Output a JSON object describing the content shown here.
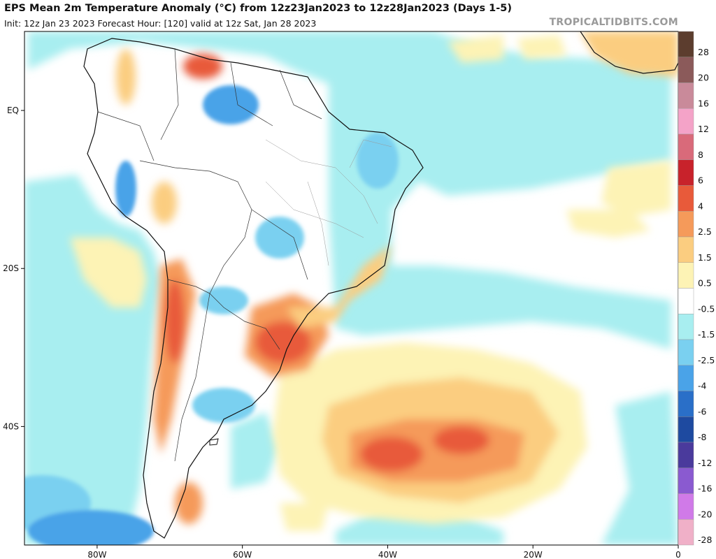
{
  "header": {
    "title": "EPS Mean 2m Temperature Anomaly (°C) from 12z23Jan2023 to 12z28Jan2023 (Days 1-5)",
    "subtitle": "Init: 12z Jan 23 2023   Forecast Hour: [120]   valid at 12z Sat, Jan 28 2023",
    "brand": "TROPICALTIDBITS.COM"
  },
  "map": {
    "lon_range": [
      -90,
      0
    ],
    "lat_range": [
      -55,
      10
    ],
    "lon_ticks": [
      {
        "value": -80,
        "label": "80W"
      },
      {
        "value": -60,
        "label": "60W"
      },
      {
        "value": -40,
        "label": "40W"
      },
      {
        "value": -20,
        "label": "20W"
      },
      {
        "value": 0,
        "label": "0"
      }
    ],
    "lat_ticks": [
      {
        "value": 0,
        "label": "EQ"
      },
      {
        "value": -20,
        "label": "20S"
      },
      {
        "value": -40,
        "label": "40S"
      }
    ]
  },
  "colorbar": {
    "levels": [
      {
        "label": "28",
        "color": "#5c3d2e"
      },
      {
        "label": "20",
        "color": "#8b5a5a"
      },
      {
        "label": "16",
        "color": "#c98a9a"
      },
      {
        "label": "12",
        "color": "#f4a3c8"
      },
      {
        "label": "8",
        "color": "#d96a7a"
      },
      {
        "label": "6",
        "color": "#c8222b"
      },
      {
        "label": "4",
        "color": "#e85a3a"
      },
      {
        "label": "2.5",
        "color": "#f59a5a"
      },
      {
        "label": "1.5",
        "color": "#fbcd80"
      },
      {
        "label": "0.5",
        "color": "#fdf3b5"
      },
      {
        "label": "-0.5",
        "color": "#ffffff"
      },
      {
        "label": "-1.5",
        "color": "#a8eef0"
      },
      {
        "label": "-2.5",
        "color": "#7ad0f0"
      },
      {
        "label": "-4",
        "color": "#4aa3e8"
      },
      {
        "label": "-6",
        "color": "#2a6fc8"
      },
      {
        "label": "-8",
        "color": "#1e4aa0"
      },
      {
        "label": "-12",
        "color": "#4a3a9c"
      },
      {
        "label": "-16",
        "color": "#8a5ad0"
      },
      {
        "label": "-20",
        "color": "#d07ae8"
      },
      {
        "label": "-28",
        "color": "#f0b0c8"
      }
    ]
  }
}
